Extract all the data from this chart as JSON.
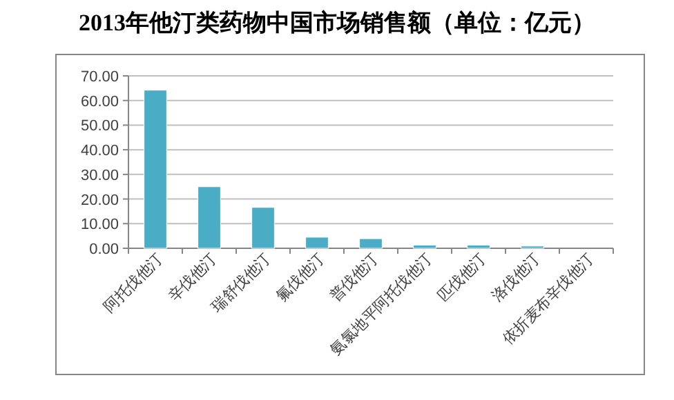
{
  "chart_data": {
    "type": "bar",
    "title": "2013年他汀类药物中国市场销售额（单位：亿元）",
    "categories": [
      "阿托伐他汀",
      "辛伐他汀",
      "瑞舒伐他汀",
      "氟伐他汀",
      "普伐他汀",
      "氨氯地平阿托伐他汀",
      "匹伐他汀",
      "洛伐他汀",
      "依折麦布辛伐他汀"
    ],
    "values": [
      64.2,
      25.0,
      16.6,
      4.5,
      3.9,
      1.3,
      1.3,
      0.9,
      null
    ],
    "color": "#4bacc6",
    "ylim": [
      0,
      70
    ],
    "yticks": [
      {
        "value": 0,
        "label": "0.00"
      },
      {
        "value": 10,
        "label": "10.00"
      },
      {
        "value": 20,
        "label": "20.00"
      },
      {
        "value": 30,
        "label": "30.00"
      },
      {
        "value": 40,
        "label": "40.00"
      },
      {
        "value": 50,
        "label": "50.00"
      },
      {
        "value": 60,
        "label": "60.00"
      },
      {
        "value": 70,
        "label": "70.00"
      }
    ],
    "grid": "y"
  }
}
